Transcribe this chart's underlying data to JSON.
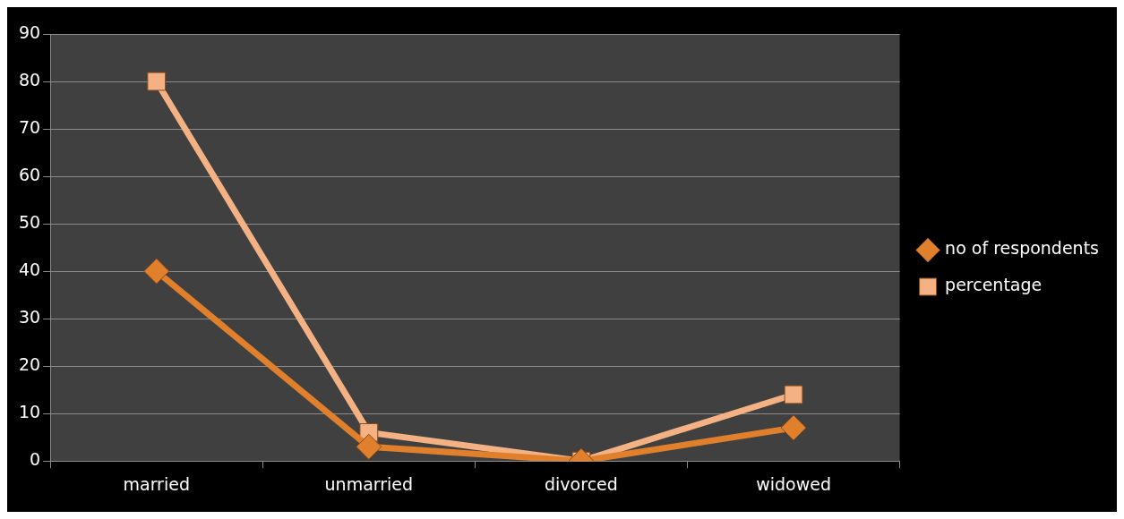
{
  "chart_data": {
    "type": "line",
    "categories": [
      "married",
      "unmarried",
      "divorced",
      "widowed"
    ],
    "series": [
      {
        "name": "no of respondents",
        "color": "#e0802c",
        "marker": "diamond",
        "values": [
          40,
          3,
          0,
          7
        ]
      },
      {
        "name": "percentage",
        "color": "#f4b183",
        "marker": "square",
        "values": [
          80,
          6,
          0,
          14
        ]
      }
    ],
    "ylim": [
      0,
      90
    ],
    "yticks": [
      0,
      10,
      20,
      30,
      40,
      50,
      60,
      70,
      80,
      90
    ],
    "grid": "y",
    "legend": "right"
  }
}
